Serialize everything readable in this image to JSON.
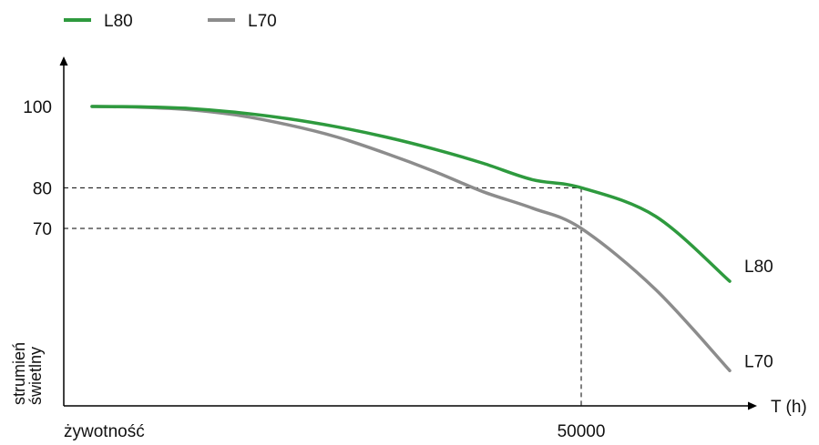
{
  "chart_data": {
    "type": "line",
    "title": "",
    "x_unit_label": "T (h)",
    "x_start_label": "żywotność",
    "x_ticks": [
      {
        "value": 50000,
        "label": "50000"
      }
    ],
    "xlim": [
      0,
      60000
    ],
    "ylabel": [
      "strumień",
      "świetlny"
    ],
    "y_ticks": [
      {
        "value": 100,
        "label": "100"
      },
      {
        "value": 80,
        "label": "80"
      },
      {
        "value": 70,
        "label": "70"
      }
    ],
    "ylim": [
      0,
      110
    ],
    "grid": false,
    "legend_position": "top-left",
    "series": [
      {
        "name": "L80",
        "color": "#2e9a3e",
        "x": [
          0,
          5000,
          10000,
          15000,
          20000,
          25000,
          30000,
          35000,
          40000,
          45000,
          50000,
          55000,
          60000
        ],
        "y": [
          100,
          99.9,
          99.5,
          98.5,
          97,
          95,
          92.5,
          89.5,
          86,
          82,
          80,
          73,
          57
        ]
      },
      {
        "name": "L70",
        "color": "#8c8c8c",
        "x": [
          0,
          5000,
          10000,
          15000,
          20000,
          25000,
          30000,
          35000,
          40000,
          45000,
          50000,
          55000,
          60000
        ],
        "y": [
          100,
          99.8,
          99.2,
          97.8,
          95.5,
          92.5,
          88.5,
          84,
          79,
          75,
          70,
          55,
          35
        ]
      }
    ],
    "reference_lines": [
      {
        "y": 80,
        "x": 50000
      },
      {
        "y": 70,
        "x": 50000
      }
    ]
  }
}
